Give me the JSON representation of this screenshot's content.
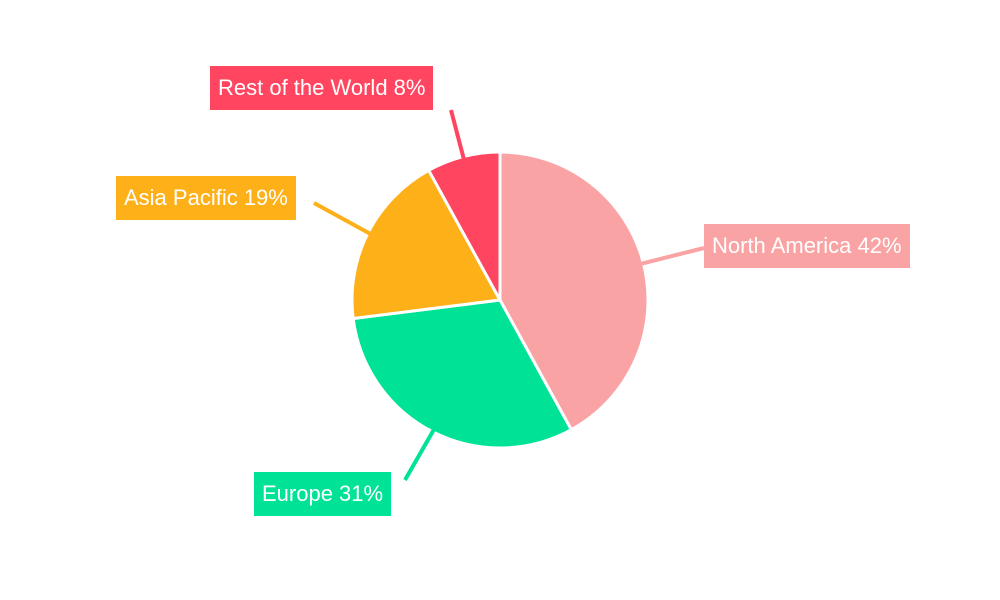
{
  "chart_data": {
    "type": "pie",
    "title": "",
    "categories": [
      "North America",
      "Europe",
      "Asia Pacific",
      "Rest of the World"
    ],
    "values": [
      42,
      31,
      19,
      8
    ],
    "labels": [
      "North America 42%",
      "Europe 31%",
      "Asia Pacific 19%",
      "Rest of the World 8%"
    ],
    "colors": [
      "#F9A3A4",
      "#00E396",
      "#FEB019",
      "#FF4560"
    ],
    "start_angle": "top, clockwise",
    "legend": "none"
  }
}
